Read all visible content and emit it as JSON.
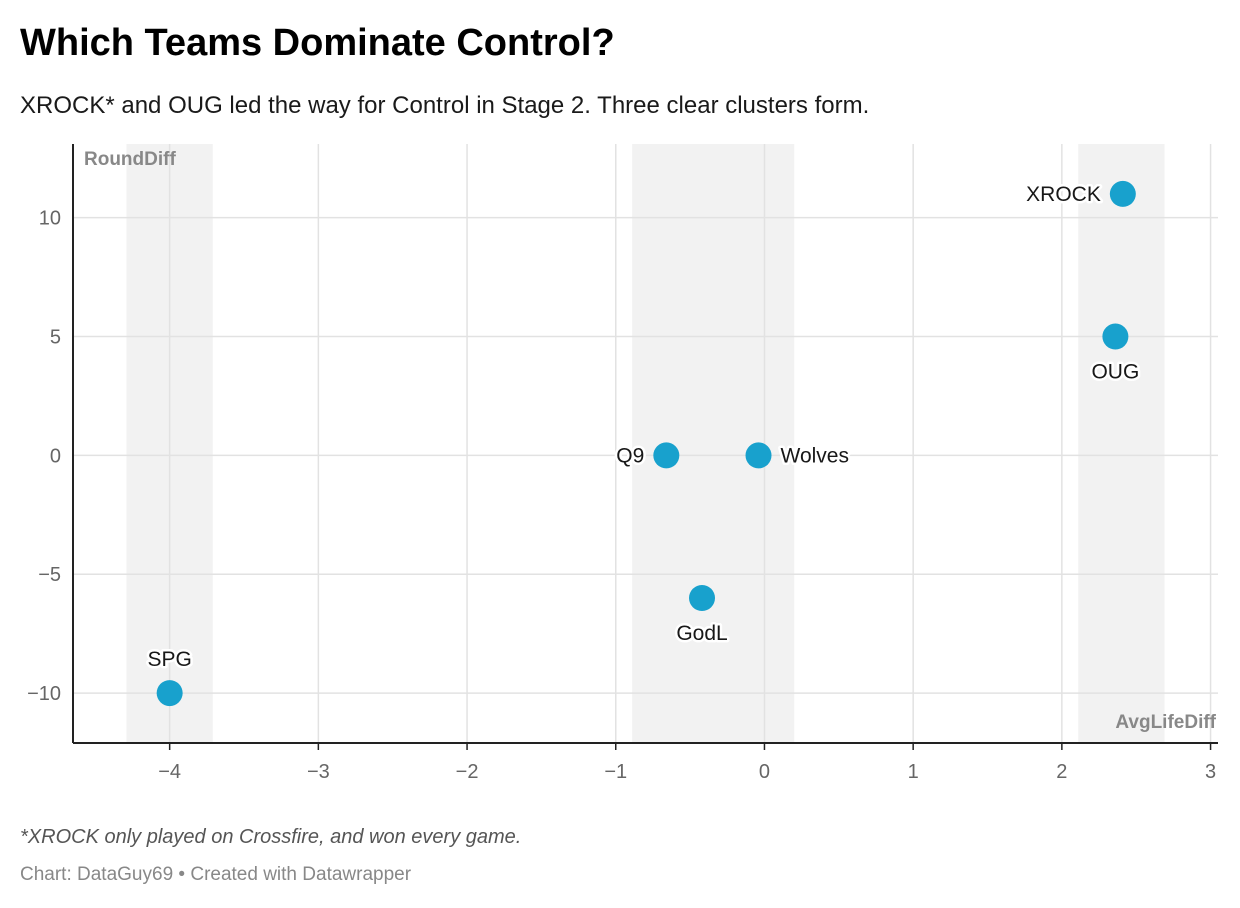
{
  "header": {
    "title": "Which Teams Dominate Control?",
    "subtitle": "XROCK* and OUG led the way for Control in Stage 2. Three clear clusters form."
  },
  "footer": {
    "note": "*XROCK only played on Crossfire, and won every game.",
    "source": "Chart: DataGuy69 • Created with Datawrapper"
  },
  "chart_data": {
    "type": "scatter",
    "xlabel": "AvgLifeDiff",
    "ylabel": "RoundDiff",
    "xlim": [
      -4.65,
      3.05
    ],
    "ylim": [
      -12.1,
      13.1
    ],
    "x_ticks": [
      -4,
      -3,
      -2,
      -1,
      0,
      1,
      2,
      3
    ],
    "y_ticks": [
      10,
      5,
      0,
      -5,
      -10
    ],
    "x_tick_labels": [
      "−4",
      "−3",
      "−2",
      "−1",
      "0",
      "1",
      "2",
      "3"
    ],
    "y_tick_labels": [
      "10",
      "5",
      "0",
      "−5",
      "−10"
    ],
    "grid": true,
    "point_color": "#18a1cd",
    "band_color": "#f2f2f2",
    "cluster_bands": [
      {
        "x_start": -4.29,
        "x_end": -3.71
      },
      {
        "x_start": -0.89,
        "x_end": 0.2
      },
      {
        "x_start": 2.11,
        "x_end": 2.69
      }
    ],
    "points": [
      {
        "label": "XROCK",
        "x": 2.41,
        "y": 11,
        "label_pos": "left"
      },
      {
        "label": "OUG",
        "x": 2.36,
        "y": 5,
        "label_pos": "below"
      },
      {
        "label": "Q9",
        "x": -0.66,
        "y": 0,
        "label_pos": "left"
      },
      {
        "label": "Wolves",
        "x": -0.04,
        "y": 0,
        "label_pos": "right"
      },
      {
        "label": "GodL",
        "x": -0.42,
        "y": -6,
        "label_pos": "below"
      },
      {
        "label": "SPG",
        "x": -4.0,
        "y": -10,
        "label_pos": "above"
      }
    ]
  }
}
